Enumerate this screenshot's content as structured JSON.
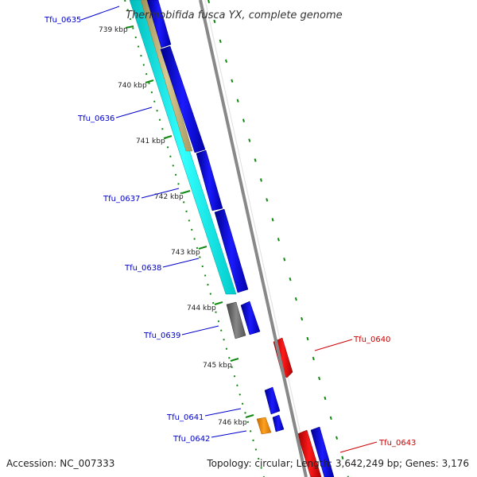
{
  "title": "Thermobifida fusca YX, complete genome",
  "footer": {
    "accession": "Accession: NC_007333",
    "summary": "Topology: circular; Length: 3,642,249 bp; Genes: 3,176"
  },
  "ticks": [
    "739 kbp",
    "740 kbp",
    "741 kbp",
    "742 kbp",
    "743 kbp",
    "744 kbp",
    "745 kbp",
    "746 kbp"
  ],
  "genes": [
    {
      "name": "Tfu_0635",
      "strand": "forward",
      "color": "#0000cc"
    },
    {
      "name": "Tfu_0636",
      "strand": "forward",
      "color": "#0000cc"
    },
    {
      "name": "Tfu_0637",
      "strand": "forward",
      "color": "#0000cc"
    },
    {
      "name": "Tfu_0638",
      "strand": "forward",
      "color": "#0000cc"
    },
    {
      "name": "Tfu_0639",
      "strand": "forward",
      "color": "#0000cc"
    },
    {
      "name": "Tfu_0640",
      "strand": "reverse",
      "color": "#cc0000"
    },
    {
      "name": "Tfu_0641",
      "strand": "forward",
      "color": "#0000cc"
    },
    {
      "name": "Tfu_0642",
      "strand": "forward",
      "color": "#0000cc"
    },
    {
      "name": "Tfu_0643",
      "strand": "reverse",
      "color": "#cc0000"
    }
  ],
  "colors": {
    "forward_cds": "#0000ee",
    "reverse_cds": "#ee0000",
    "backbone": "#888888",
    "tick_marks": "#118811",
    "cyan_feature": "#00e5e5",
    "tan_feature": "#c2b27a",
    "gray_feature": "#666666",
    "orange_feature": "#ee8800"
  }
}
